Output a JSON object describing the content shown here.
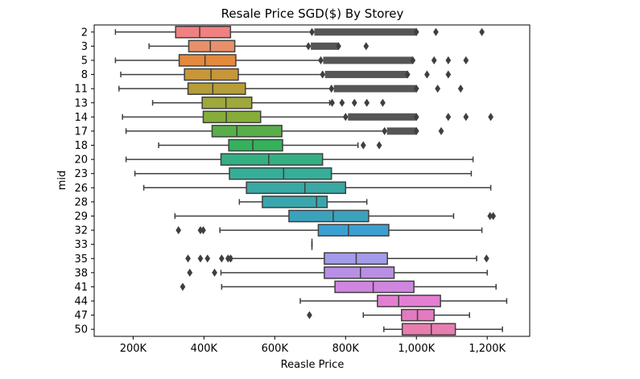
{
  "chart_data": {
    "type": "boxplot",
    "orientation": "horizontal",
    "title": "Resale Price SGD($) By Storey",
    "xlabel": "Reasle Price",
    "ylabel": "mid",
    "xlim": [
      90000,
      1320000
    ],
    "xticks": [
      200000,
      400000,
      600000,
      800000,
      1000000,
      1200000
    ],
    "xtick_labels": [
      "200K",
      "400K",
      "600K",
      "800K",
      "1,000K",
      "1,200K"
    ],
    "grid": false,
    "legend": "none",
    "categories": [
      "2",
      "3",
      "5",
      "8",
      "11",
      "13",
      "14",
      "17",
      "18",
      "20",
      "23",
      "26",
      "28",
      "29",
      "32",
      "33",
      "35",
      "38",
      "41",
      "44",
      "47",
      "50"
    ],
    "colors": [
      "#f08181",
      "#e8906a",
      "#e38a3e",
      "#c6963a",
      "#b59d39",
      "#9ea83b",
      "#86ad3a",
      "#58ae49",
      "#34b15b",
      "#34af83",
      "#36ae97",
      "#38a9a4",
      "#39a6ad",
      "#3aa3bb",
      "#3ba0d1",
      "#6c9fe6",
      "#a49bea",
      "#b88fe5",
      "#cf86e0",
      "#e47ed3",
      "#e47ac0",
      "#e87daf"
    ],
    "boxes": [
      {
        "category": "2",
        "whisker_low": 150000,
        "q1": 320000,
        "median": 388000,
        "q3": 475000,
        "whisker_high": 705000,
        "outliers": [
          705000,
          1000000,
          1055000,
          1185000
        ]
      },
      {
        "category": "3",
        "whisker_low": 245000,
        "q1": 357000,
        "median": 418000,
        "q3": 487000,
        "whisker_high": 695000,
        "outliers": [
          695000,
          780000,
          858000
        ]
      },
      {
        "category": "5",
        "whisker_low": 150000,
        "q1": 330000,
        "median": 403000,
        "q3": 490000,
        "whisker_high": 730000,
        "outliers": [
          730000,
          990000,
          1050000,
          1090000,
          1140000
        ]
      },
      {
        "category": "8",
        "whisker_low": 165000,
        "q1": 345000,
        "median": 420000,
        "q3": 497000,
        "whisker_high": 735000,
        "outliers": [
          735000,
          975000,
          1030000,
          1090000
        ]
      },
      {
        "category": "11",
        "whisker_low": 160000,
        "q1": 355000,
        "median": 425000,
        "q3": 517000,
        "whisker_high": 760000,
        "outliers": [
          760000,
          1000000,
          1060000,
          1125000
        ]
      },
      {
        "category": "13",
        "whisker_low": 255000,
        "q1": 395000,
        "median": 462000,
        "q3": 535000,
        "whisker_high": 755000,
        "outliers": [
          762000,
          790000,
          825000,
          860000,
          905000
        ]
      },
      {
        "category": "14",
        "whisker_low": 170000,
        "q1": 398000,
        "median": 463000,
        "q3": 560000,
        "whisker_high": 800000,
        "outliers": [
          800000,
          1000000,
          1090000,
          1140000,
          1210000
        ]
      },
      {
        "category": "17",
        "whisker_low": 180000,
        "q1": 423000,
        "median": 493000,
        "q3": 620000,
        "whisker_high": 910000,
        "outliers": [
          910000,
          1000000,
          1070000
        ]
      },
      {
        "category": "18",
        "whisker_low": 272000,
        "q1": 470000,
        "median": 538000,
        "q3": 622000,
        "whisker_high": 835000,
        "outliers": [
          850000,
          895000
        ]
      },
      {
        "category": "20",
        "whisker_low": 180000,
        "q1": 448000,
        "median": 583000,
        "q3": 735000,
        "whisker_high": 1160000,
        "outliers": []
      },
      {
        "category": "23",
        "whisker_low": 205000,
        "q1": 472000,
        "median": 625000,
        "q3": 760000,
        "whisker_high": 1155000,
        "outliers": []
      },
      {
        "category": "26",
        "whisker_low": 230000,
        "q1": 520000,
        "median": 685000,
        "q3": 800000,
        "whisker_high": 1210000,
        "outliers": []
      },
      {
        "category": "28",
        "whisker_low": 500000,
        "q1": 565000,
        "median": 718000,
        "q3": 748000,
        "whisker_high": 860000,
        "outliers": []
      },
      {
        "category": "29",
        "whisker_low": 318000,
        "q1": 640000,
        "median": 765000,
        "q3": 865000,
        "whisker_high": 1105000,
        "outliers": [
          1208000,
          1217000
        ]
      },
      {
        "category": "32",
        "whisker_low": 445000,
        "q1": 723000,
        "median": 808000,
        "q3": 922000,
        "whisker_high": 1185000,
        "outliers": [
          328000,
          390000,
          398000
        ]
      },
      {
        "category": "33",
        "whisker_low": 705000,
        "q1": 705000,
        "median": 705000,
        "q3": 705000,
        "whisker_high": 705000,
        "outliers": []
      },
      {
        "category": "35",
        "whisker_low": 478000,
        "q1": 740000,
        "median": 830000,
        "q3": 918000,
        "whisker_high": 1170000,
        "outliers": [
          355000,
          390000,
          410000,
          450000,
          468000,
          475000,
          1198000
        ]
      },
      {
        "category": "38",
        "whisker_low": 448000,
        "q1": 740000,
        "median": 842000,
        "q3": 937000,
        "whisker_high": 1200000,
        "outliers": [
          360000,
          430000
        ]
      },
      {
        "category": "41",
        "whisker_low": 450000,
        "q1": 770000,
        "median": 878000,
        "q3": 993000,
        "whisker_high": 1225000,
        "outliers": [
          340000
        ]
      },
      {
        "category": "44",
        "whisker_low": 672000,
        "q1": 890000,
        "median": 950000,
        "q3": 1068000,
        "whisker_high": 1255000,
        "outliers": []
      },
      {
        "category": "47",
        "whisker_low": 850000,
        "q1": 958000,
        "median": 1003000,
        "q3": 1050000,
        "whisker_high": 1150000,
        "outliers": [
          698000
        ]
      },
      {
        "category": "50",
        "whisker_low": 908000,
        "q1": 960000,
        "median": 1042000,
        "q3": 1110000,
        "whisker_high": 1243000,
        "outliers": []
      }
    ]
  }
}
